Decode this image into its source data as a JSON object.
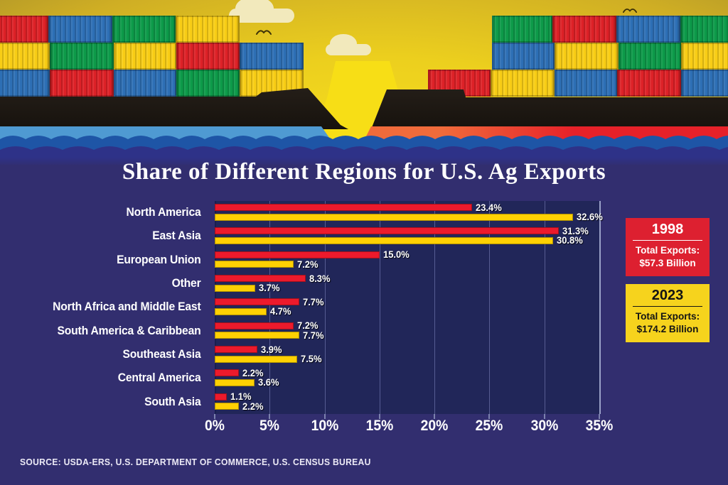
{
  "title": "Share of Different Regions for U.S. Ag Exports",
  "source": "SOURCE: USDA-ERS, U.S. DEPARTMENT OF COMMERCE, U.S. CENSUS BUREAU",
  "colors": {
    "bar_1998": "#ec1a2c",
    "bar_2023": "#ffd103",
    "section_background": "#322e6f",
    "plot_background": "#212659",
    "gridline": "#565c92"
  },
  "legend": [
    {
      "year": "1998",
      "label": "Total Exports:",
      "value": "$57.3 Billion",
      "bg": "#dd2030",
      "fg": "#ffffff"
    },
    {
      "year": "2023",
      "label": "Total Exports:",
      "value": "$174.2 Billion",
      "bg": "#f6d31d",
      "fg": "#141414"
    }
  ],
  "chart_data": {
    "type": "bar",
    "orientation": "horizontal",
    "title": "Share of Different Regions for U.S. Ag Exports",
    "categories": [
      "North America",
      "East Asia",
      "European Union",
      "Other",
      "North Africa and Middle East",
      "South America & Caribbean",
      "Southeast Asia",
      "Central America",
      "South Asia"
    ],
    "series": [
      {
        "name": "1998",
        "color": "#ec1a2c",
        "values": [
          23.4,
          31.3,
          15.0,
          8.3,
          7.7,
          7.2,
          3.9,
          2.2,
          1.1
        ],
        "labels": [
          "23.4%",
          "31.3%",
          "15.0%",
          "8.3%",
          "7.7%",
          "7.2%",
          "3.9%",
          "2.2%",
          "1.1%"
        ]
      },
      {
        "name": "2023",
        "color": "#ffd103",
        "values": [
          32.6,
          30.8,
          7.2,
          3.7,
          4.7,
          7.7,
          7.5,
          3.6,
          2.2
        ],
        "labels": [
          "32.6%",
          "30.8%",
          "7.2%",
          "3.7%",
          "4.7%",
          "7.7%",
          "7.5%",
          "3.6%",
          "2.2%"
        ]
      }
    ],
    "x_ticks": [
      "0%",
      "5%",
      "10%",
      "15%",
      "20%",
      "25%",
      "30%",
      "35%"
    ],
    "xlim": [
      0,
      35
    ],
    "gridlines": true,
    "legend_position": "right"
  },
  "illustration": {
    "left_ship_containers": [
      [
        "red",
        "blue",
        "green",
        "yellow"
      ],
      [
        "yellow",
        "green",
        "yellow",
        "red",
        "blue"
      ],
      [
        "blue",
        "red",
        "blue",
        "green",
        "yellow"
      ]
    ],
    "right_ship_containers": [
      [
        "green",
        "red",
        "blue",
        "green"
      ],
      [
        "blue",
        "yellow",
        "green",
        "yellow"
      ],
      [
        "red",
        "yellow",
        "blue",
        "red",
        "blue"
      ]
    ],
    "container_colors": {
      "red": "#dd2127",
      "blue": "#2d6fb5",
      "green": "#0d9a49",
      "yellow": "#f8cd15"
    }
  }
}
